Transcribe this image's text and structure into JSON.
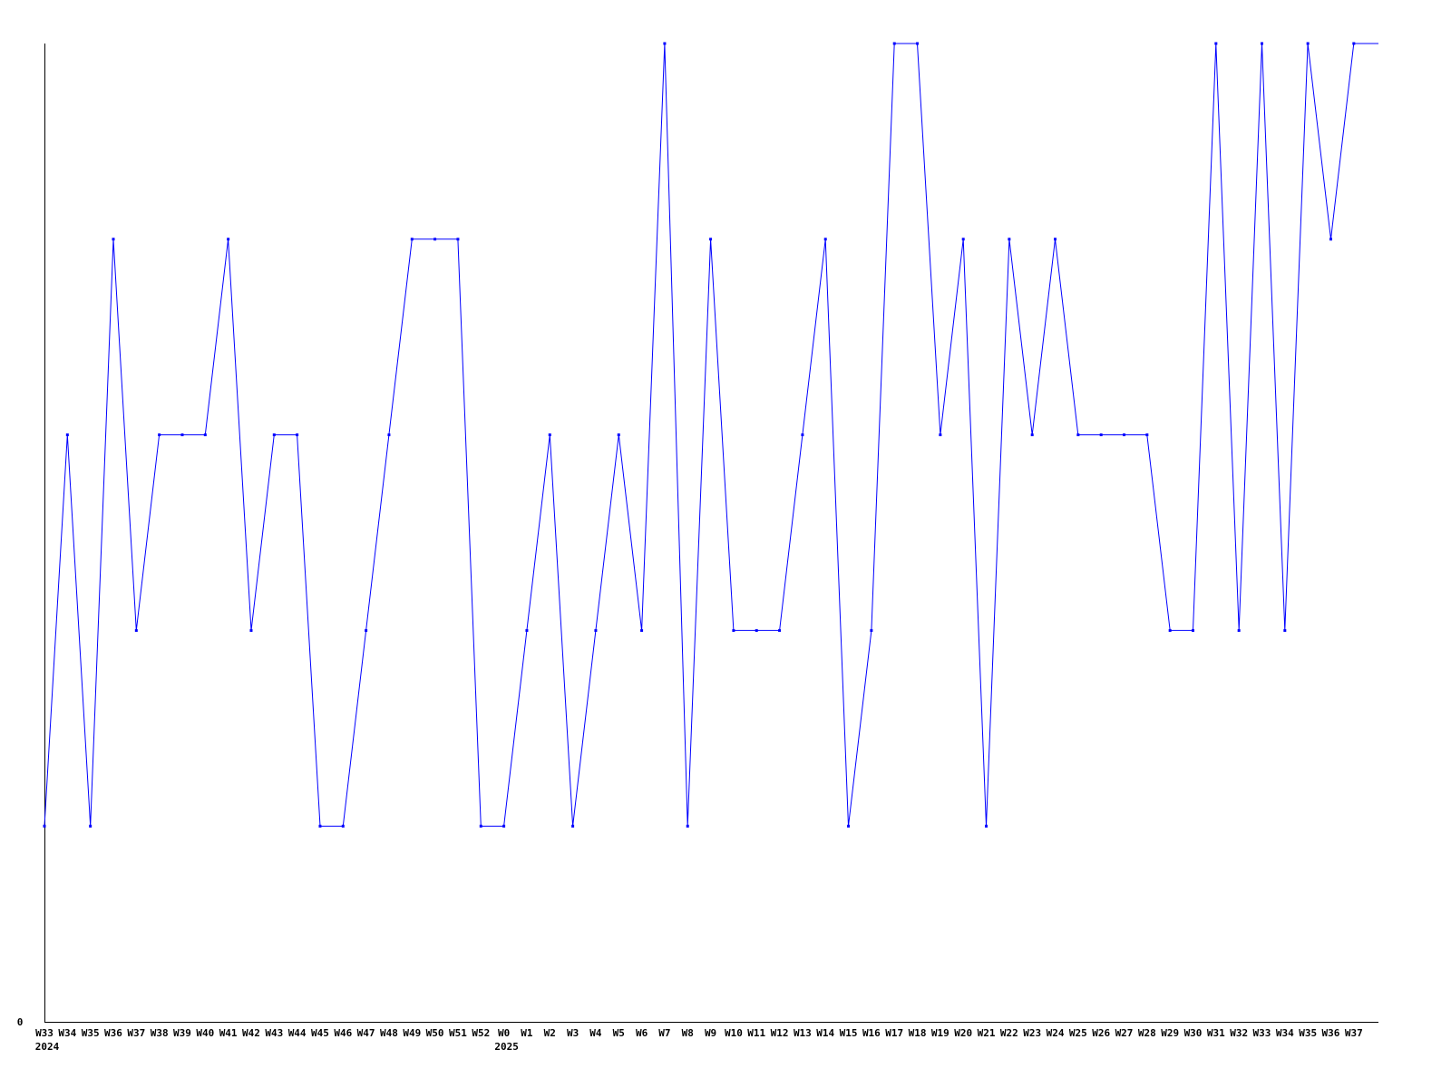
{
  "chart_data": {
    "type": "line",
    "title": "",
    "xlabel": "",
    "ylabel": "",
    "ylim": [
      0,
      5
    ],
    "y_tick_labels": [
      "0"
    ],
    "grid": false,
    "line_color": "#0000ff",
    "categories": [
      "W33",
      "W34",
      "W35",
      "W36",
      "W37",
      "W38",
      "W39",
      "W40",
      "W41",
      "W42",
      "W43",
      "W44",
      "W45",
      "W46",
      "W47",
      "W48",
      "W49",
      "W50",
      "W51",
      "W52",
      "W0",
      "W1",
      "W2",
      "W3",
      "W4",
      "W5",
      "W6",
      "W7",
      "W8",
      "W9",
      "W10",
      "W11",
      "W12",
      "W13",
      "W14",
      "W15",
      "W16",
      "W17",
      "W18",
      "W19",
      "W20",
      "W21",
      "W22",
      "W23",
      "W24",
      "W25",
      "W26",
      "W27",
      "W28",
      "W29",
      "W30",
      "W31",
      "W32",
      "W33",
      "W34",
      "W35",
      "W36",
      "W37"
    ],
    "year_labels": [
      {
        "category_index": 0,
        "label": "2024"
      },
      {
        "category_index": 20,
        "label": "2025"
      }
    ],
    "values": [
      1,
      3,
      1,
      4,
      2,
      3,
      3,
      3,
      4,
      2,
      3,
      3,
      1,
      1,
      2,
      3,
      4,
      4,
      4,
      1,
      1,
      2,
      3,
      1,
      2,
      3,
      2,
      5,
      1,
      4,
      2,
      2,
      2,
      3,
      4,
      1,
      2,
      5,
      5,
      3,
      4,
      1,
      4,
      3,
      4,
      3,
      3,
      3,
      3,
      2,
      2,
      5,
      2,
      5,
      2,
      5,
      4,
      5
    ]
  }
}
